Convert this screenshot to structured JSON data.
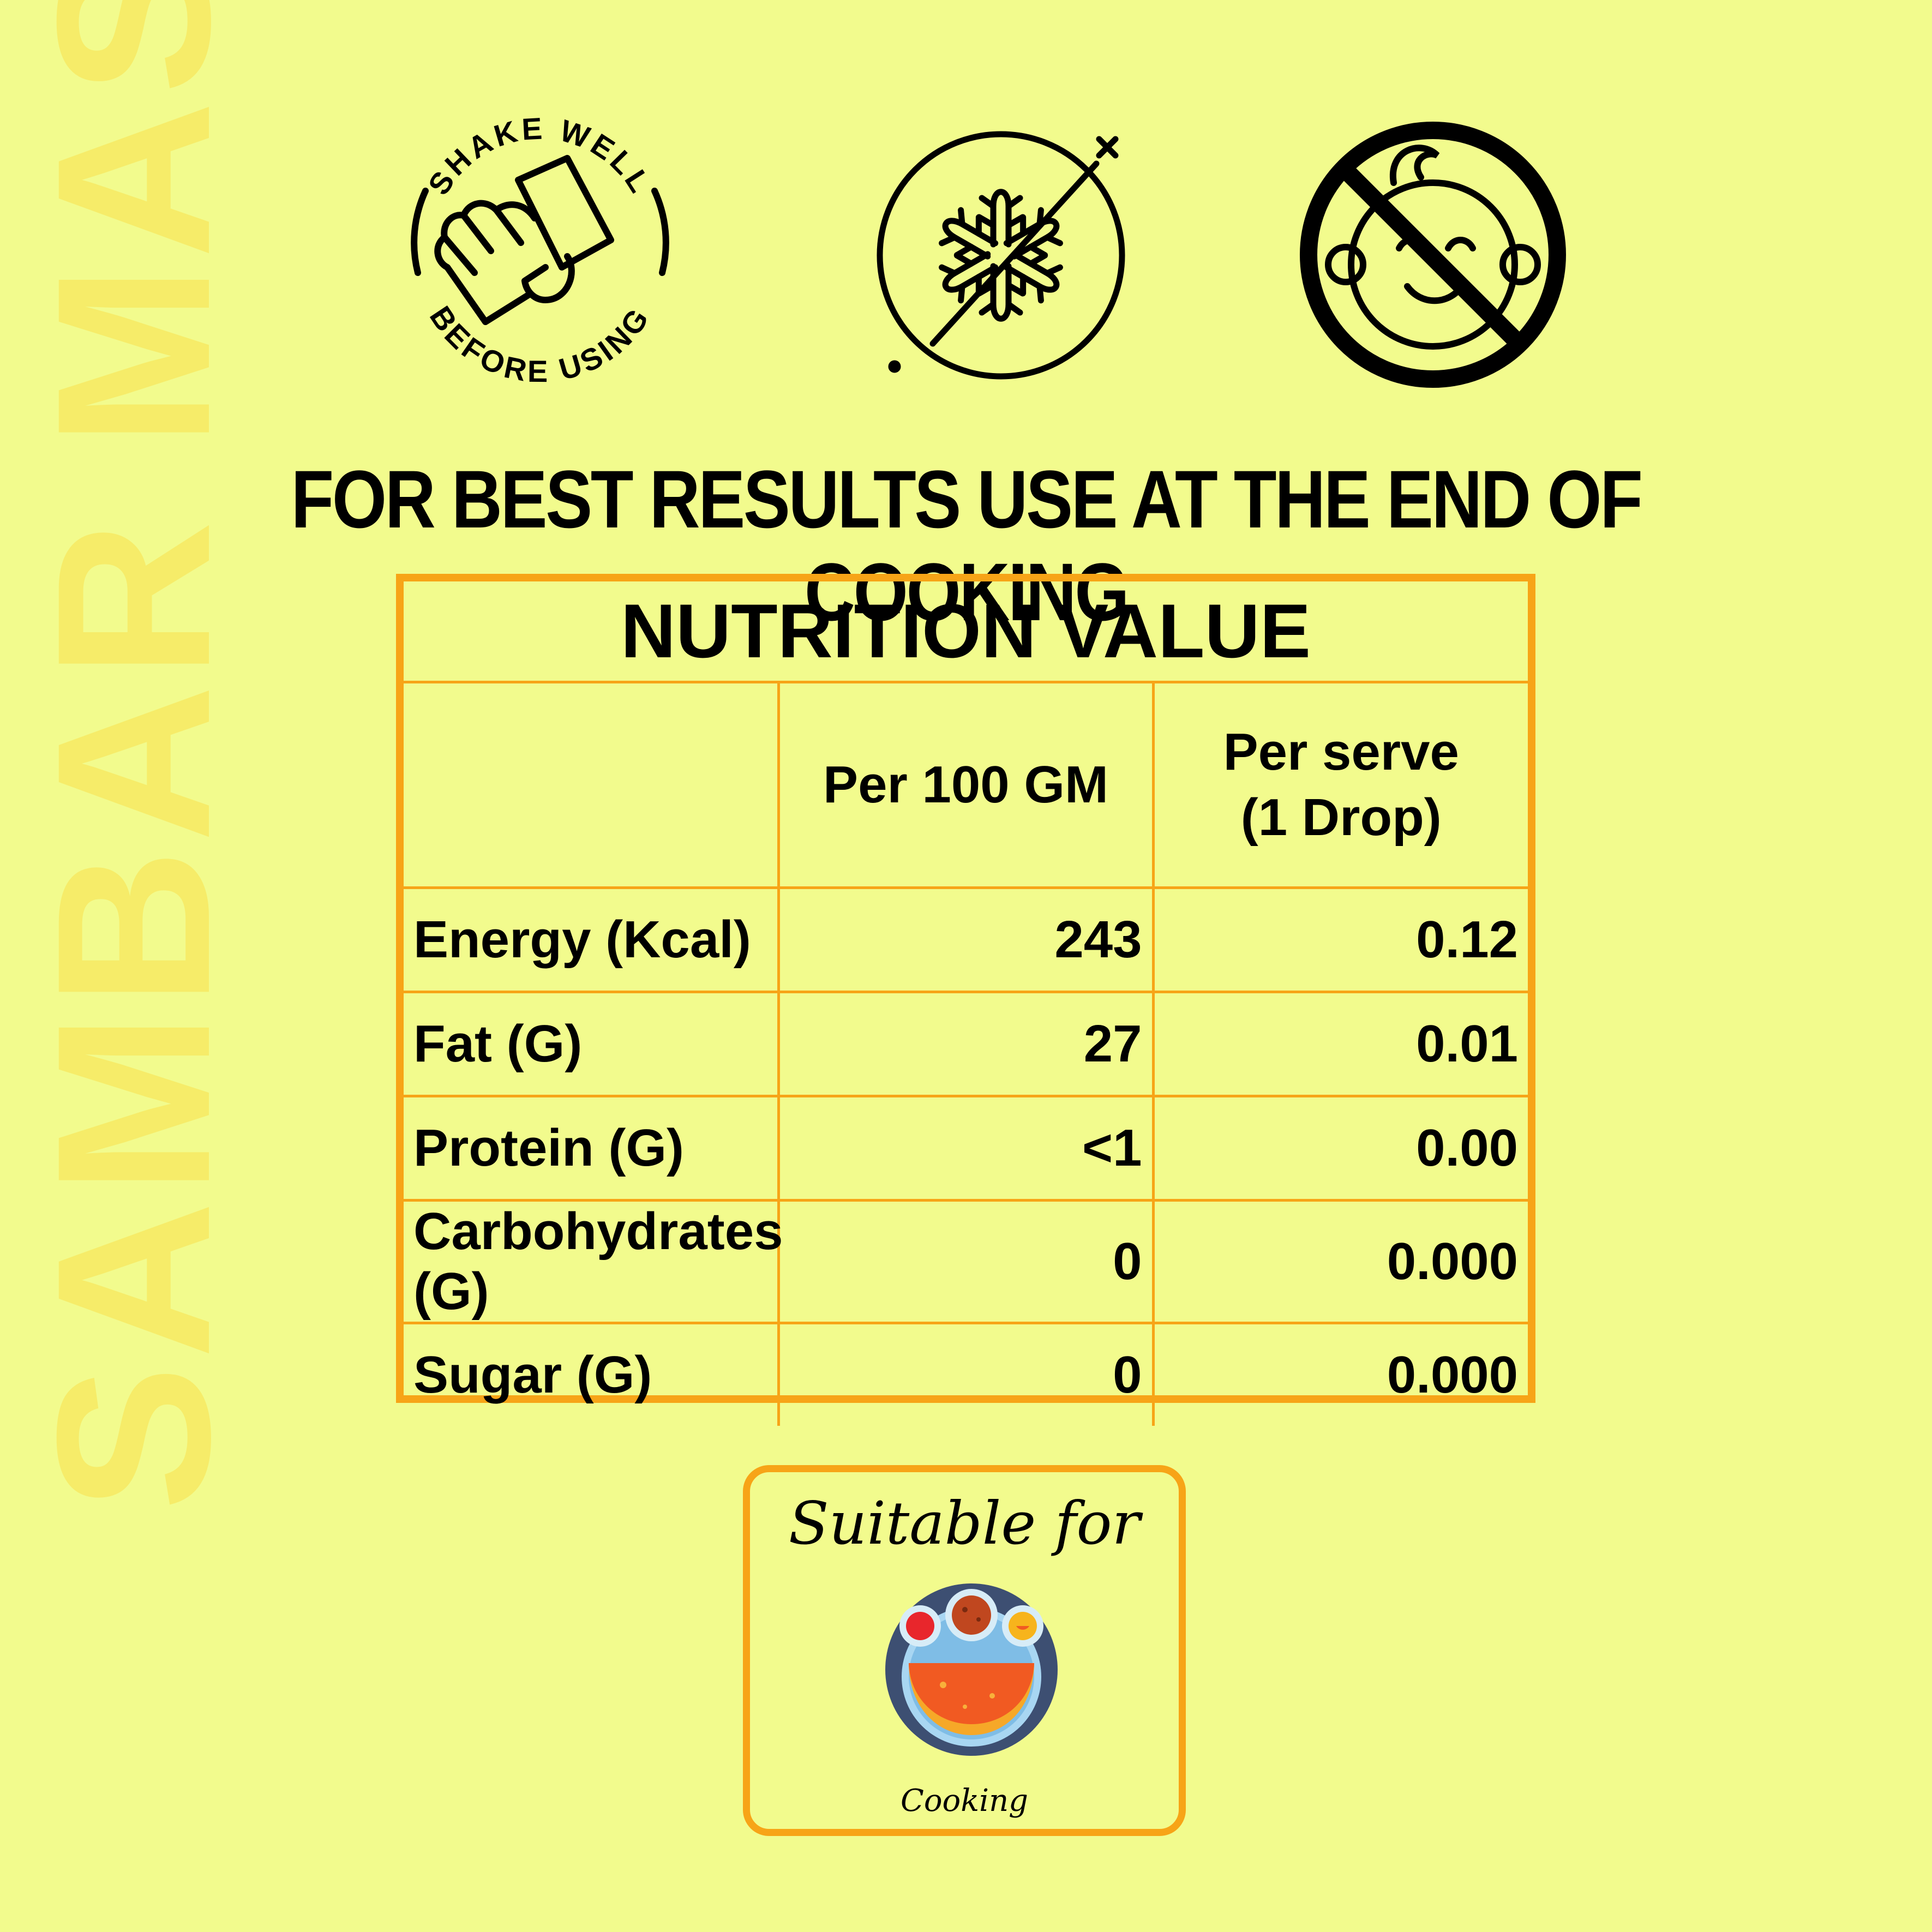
{
  "watermark": "SAMBAR MASALA",
  "icons": {
    "shake": {
      "name": "shake-well-icon",
      "top_text": "SHAKE WELL",
      "bottom_text": "BEFORE USING"
    },
    "no_freeze": {
      "name": "do-not-freeze-icon"
    },
    "no_children": {
      "name": "not-for-children-icon"
    }
  },
  "tagline": "FOR BEST RESULTS USE AT THE END OF COOKING",
  "nutrition": {
    "title": "NUTRITION VALUE",
    "col_headers": [
      "",
      "Per 100 GM",
      "Per serve\n(1 Drop)"
    ],
    "rows": [
      {
        "label": "Energy (Kcal)",
        "per100": "243",
        "perserve": "0.12"
      },
      {
        "label": "Fat (G)",
        "per100": "27",
        "perserve": "0.01"
      },
      {
        "label": "Protein (G)",
        "per100": "<1",
        "perserve": "0.00"
      },
      {
        "label": "Carbohydrates (G)",
        "per100": "0",
        "perserve": "0.000"
      },
      {
        "label": "Sugar (G)",
        "per100": "0",
        "perserve": "0.000"
      }
    ]
  },
  "suitable": {
    "title": "Suitable for",
    "icon": "cooking-icon",
    "label": "Cooking"
  },
  "colors": {
    "background": "#f2fb8d",
    "border": "#f7a417",
    "watermark": "#f6ec69"
  }
}
